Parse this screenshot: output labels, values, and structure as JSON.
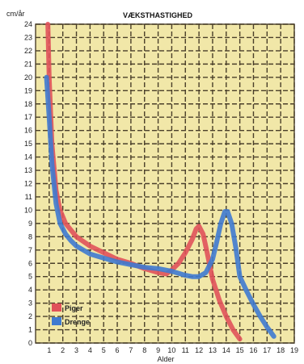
{
  "chart_data": {
    "type": "line",
    "title": "VÆKSTHASTIGHED",
    "ylabel": "cm/år",
    "xlabel": "Alder",
    "xlim": [
      0,
      19
    ],
    "ylim": [
      0,
      24
    ],
    "x_ticks": [
      1,
      2,
      3,
      4,
      5,
      6,
      7,
      8,
      9,
      10,
      11,
      12,
      13,
      14,
      15,
      16,
      17,
      18,
      19
    ],
    "y_ticks": [
      0,
      1,
      2,
      3,
      4,
      5,
      6,
      7,
      8,
      9,
      10,
      11,
      12,
      13,
      14,
      15,
      16,
      17,
      18,
      19,
      20,
      21,
      22,
      23,
      24
    ],
    "grid": true,
    "legend_position": "bottom-left",
    "plot_background": "#f1e7a8",
    "grid_color": "#4a3f2a",
    "series": [
      {
        "name": "Piger",
        "color": "#e0525a",
        "x": [
          0.9,
          1.0,
          1.2,
          1.5,
          1.8,
          2.2,
          2.6,
          3.0,
          4.0,
          5.0,
          6.0,
          7.0,
          8.0,
          9.0,
          9.6,
          10.0,
          10.5,
          11.0,
          11.5,
          11.8,
          12.0,
          12.3,
          12.6,
          13.0,
          13.5,
          14.0,
          14.5,
          15.0
        ],
        "values": [
          24.0,
          20.0,
          15.0,
          11.5,
          10.0,
          9.0,
          8.5,
          8.0,
          7.3,
          6.8,
          6.3,
          6.0,
          5.6,
          5.3,
          5.2,
          5.5,
          6.0,
          6.8,
          7.8,
          8.6,
          8.8,
          8.2,
          6.8,
          4.8,
          3.2,
          2.0,
          1.0,
          0.3
        ]
      },
      {
        "name": "Drenge",
        "color": "#3f7ad0",
        "x": [
          0.8,
          1.0,
          1.2,
          1.5,
          1.8,
          2.2,
          2.6,
          3.0,
          4.0,
          5.0,
          6.0,
          7.0,
          8.0,
          9.0,
          10.0,
          11.0,
          11.5,
          12.0,
          12.5,
          13.0,
          13.3,
          13.6,
          13.9,
          14.1,
          14.4,
          14.7,
          15.0,
          15.5,
          16.0,
          16.5,
          17.0,
          17.5
        ],
        "values": [
          20.0,
          17.0,
          13.5,
          10.5,
          9.0,
          8.2,
          7.7,
          7.3,
          6.7,
          6.4,
          6.1,
          5.9,
          5.7,
          5.6,
          5.4,
          5.1,
          5.0,
          5.0,
          5.3,
          6.3,
          7.6,
          9.0,
          9.9,
          9.9,
          9.0,
          7.2,
          5.0,
          3.9,
          2.9,
          2.0,
          1.2,
          0.5
        ]
      }
    ]
  }
}
